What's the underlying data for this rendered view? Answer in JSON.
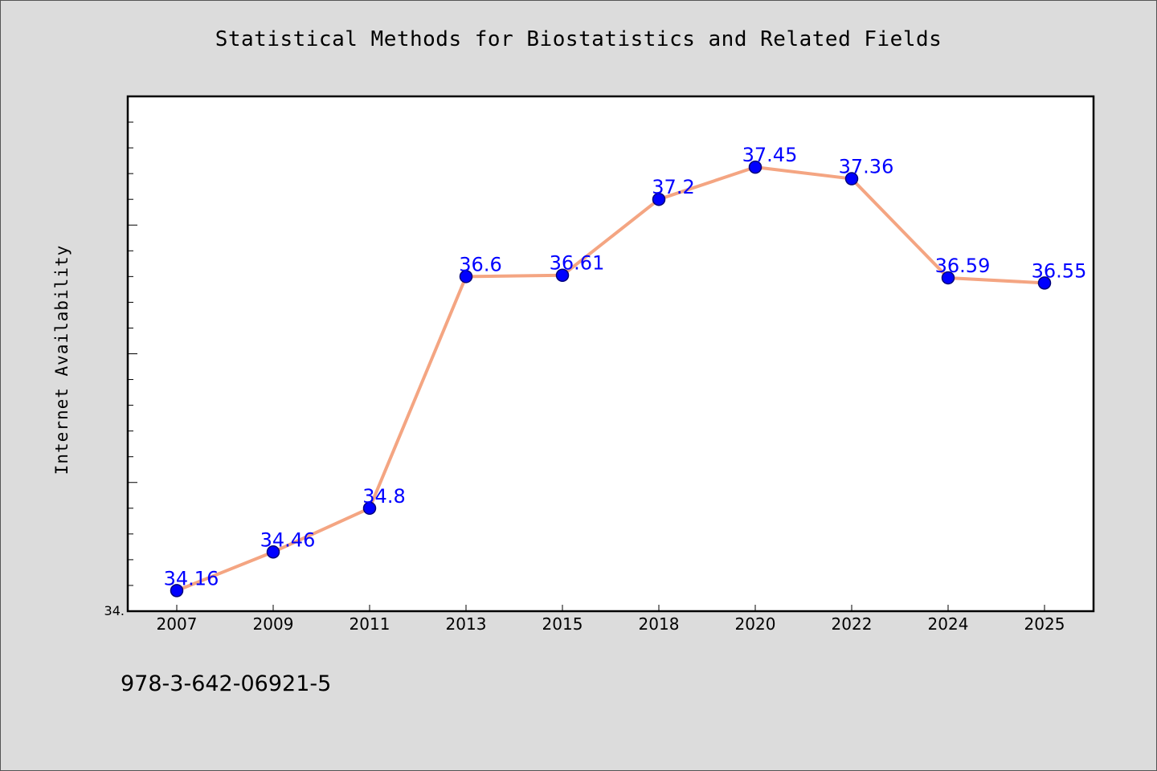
{
  "chart_data": {
    "type": "line",
    "title": "Statistical Methods for Biostatistics and Related Fields",
    "ylabel": "Internet Availability",
    "xlabel": "",
    "categories": [
      "2007",
      "2009",
      "2011",
      "2013",
      "2015",
      "2018",
      "2020",
      "2022",
      "2024",
      "2025"
    ],
    "series": [
      {
        "values": [
          34.16,
          34.46,
          34.8,
          36.6,
          36.61,
          37.2,
          37.45,
          37.36,
          36.59,
          36.55
        ],
        "data_labels": [
          "34.16",
          "34.46",
          "34.8",
          "36.6",
          "36.61",
          "37.2",
          "37.45",
          "37.36",
          "36.59",
          "36.55"
        ]
      }
    ],
    "ylim": [
      34.0,
      38.0
    ],
    "y_tick_label": "34.",
    "grid": false,
    "legend": "none",
    "colors": {
      "line": "#f4a582",
      "marker_fill": "#0000ff",
      "marker_stroke": "#00007a",
      "data_label": "#0000ff",
      "plot_background": "#ffffff",
      "figure_background": "#dcdcdc"
    }
  },
  "footer": {
    "code": "978-3-642-06921-5"
  }
}
